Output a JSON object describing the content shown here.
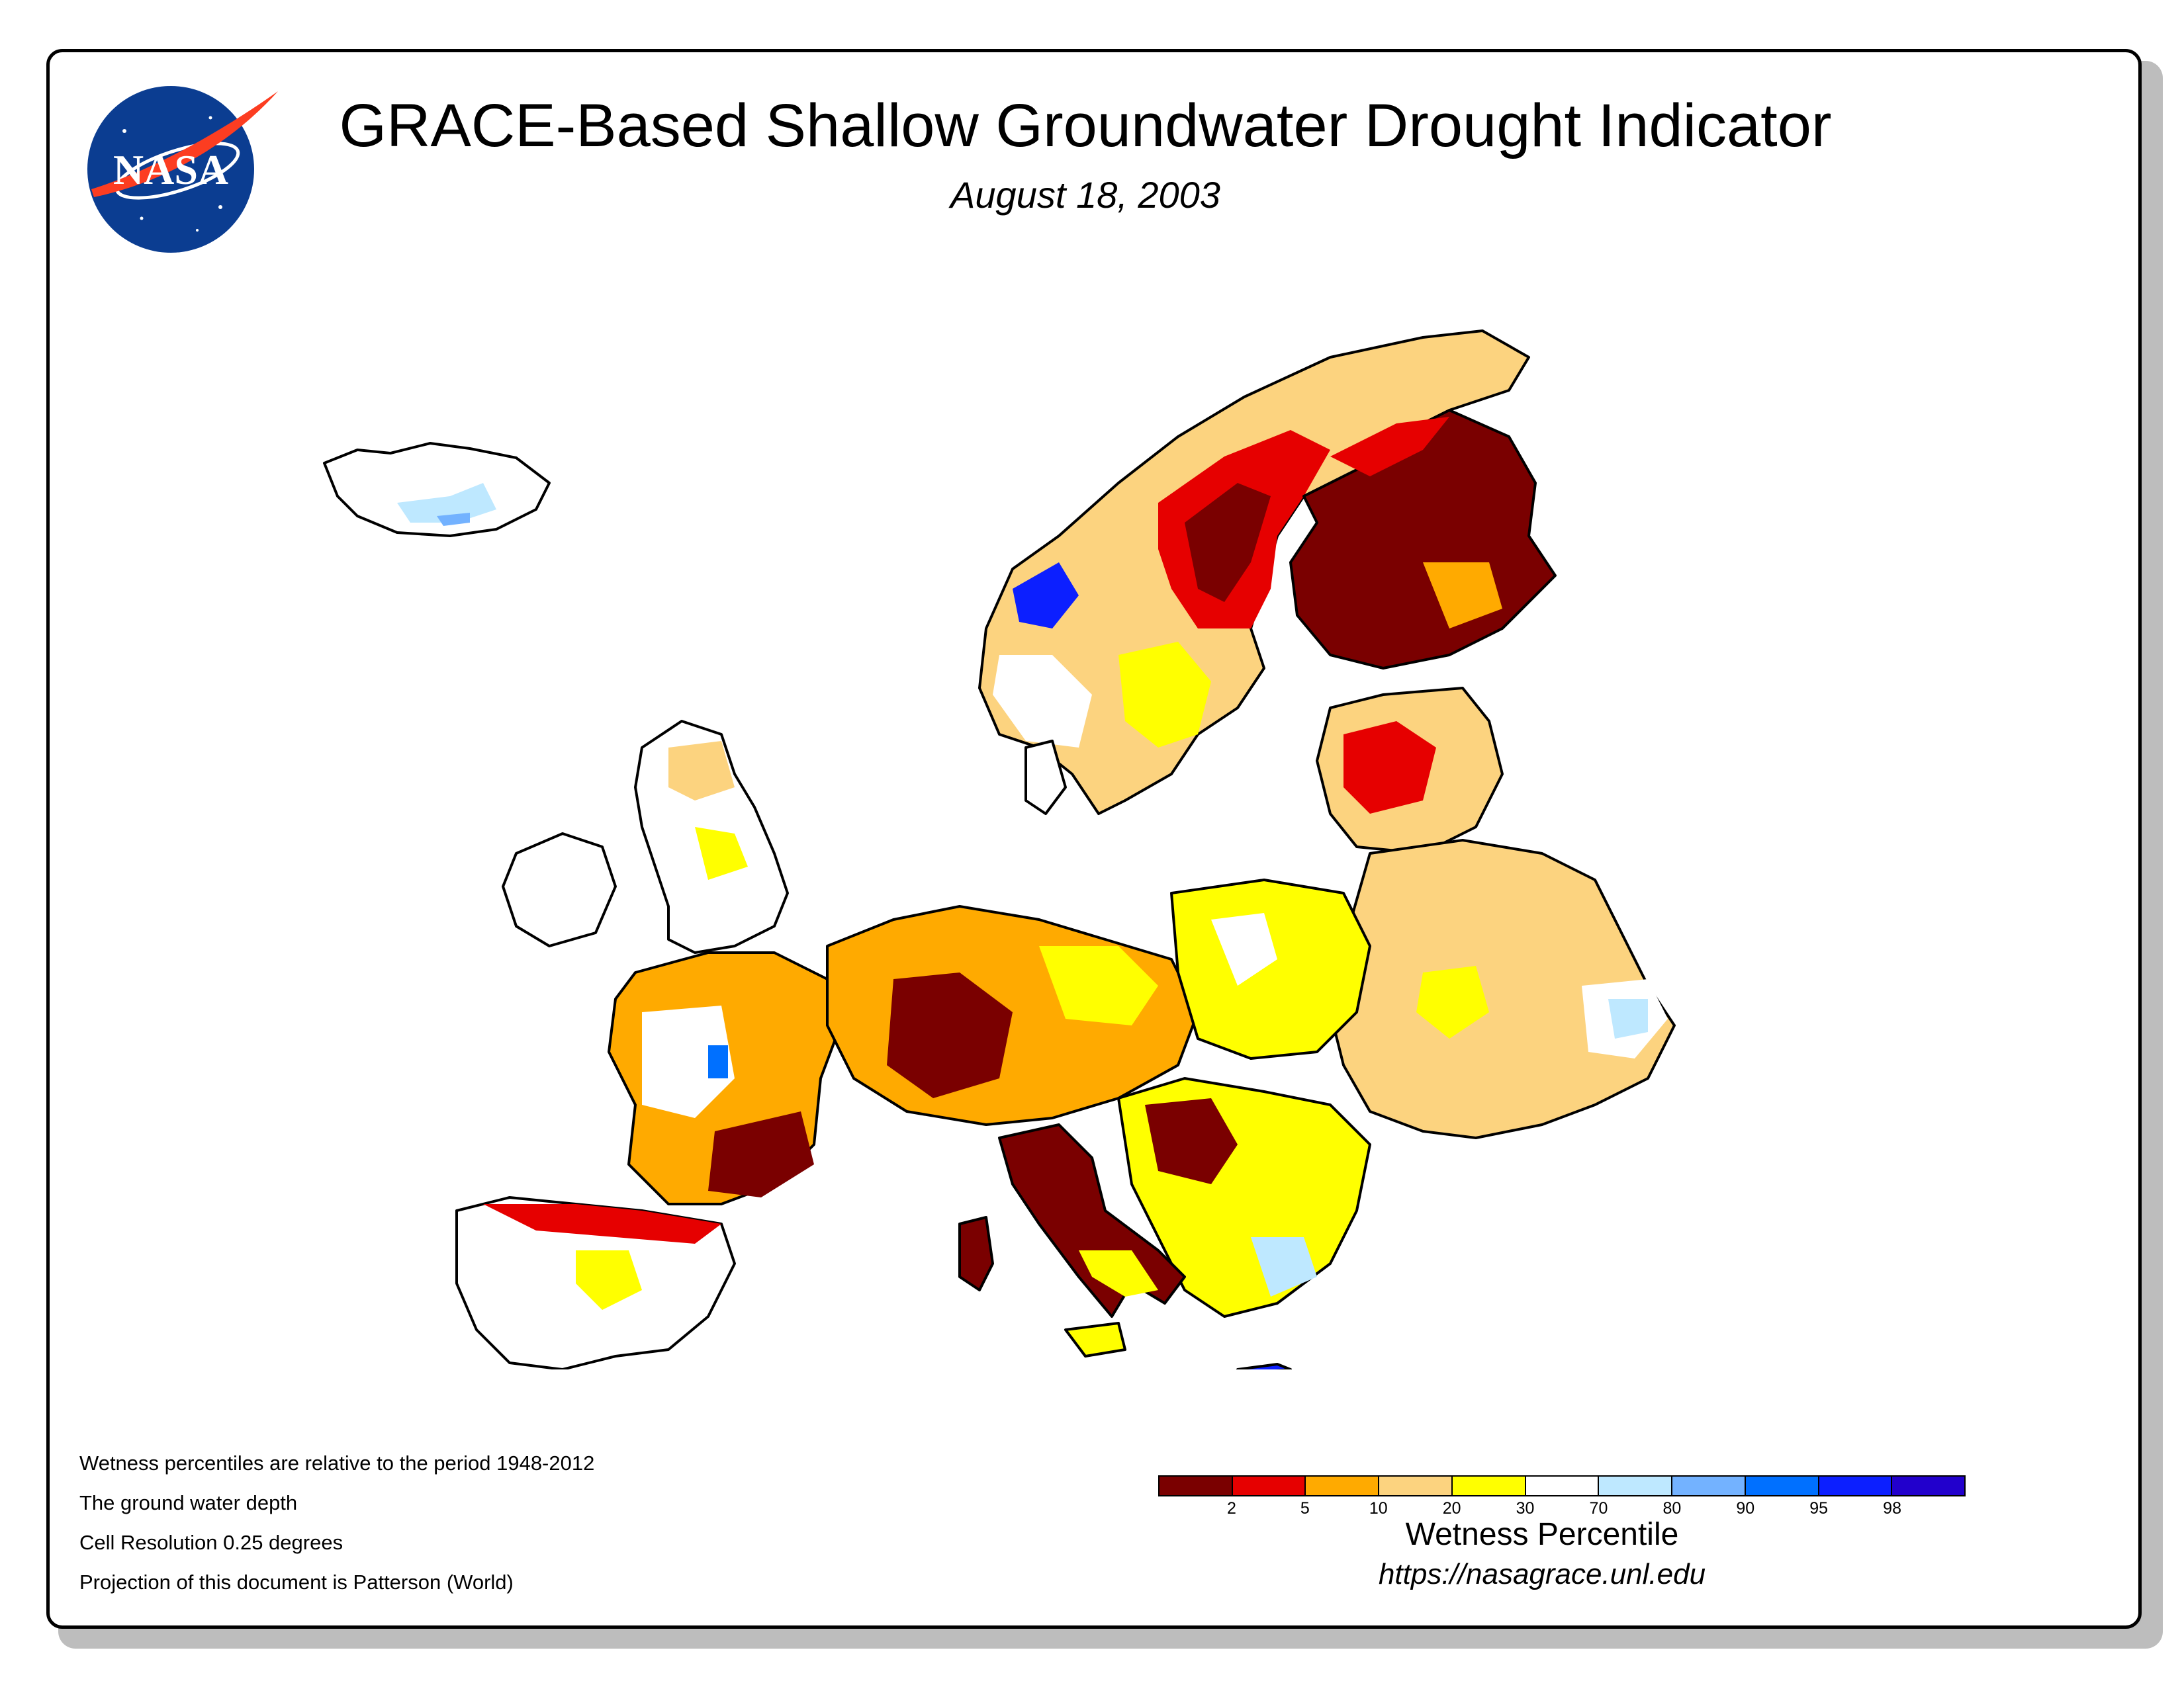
{
  "title": "GRACE-Based Shallow Groundwater Drought Indicator",
  "date": "August 18, 2003",
  "logo_text": "NASA",
  "notes": [
    "Wetness percentiles are relative to the period 1948-2012",
    "The ground water depth",
    "Cell Resolution 0.25 degrees",
    "Projection of this document is Patterson (World)"
  ],
  "legend": {
    "title": "Wetness Percentile",
    "url": "https://nasagrace.unl.edu",
    "ticks": [
      "2",
      "5",
      "10",
      "20",
      "30",
      "70",
      "80",
      "90",
      "95",
      "98"
    ],
    "colors": [
      "#7a0000",
      "#e60000",
      "#ffaa00",
      "#fcd37f",
      "#ffff00",
      "#ffffff",
      "#bee8ff",
      "#73b2ff",
      "#0070ff",
      "#0c1fff",
      "#2200cc"
    ]
  },
  "colors": {
    "extreme_dry": "#7a0000",
    "severe_dry": "#e60000",
    "moderate_dry": "#ffaa00",
    "mild_dry": "#fcd37f",
    "abnormal_dry": "#ffff00",
    "normal": "#ffffff",
    "wet": "#73b2ff",
    "border": "#000000"
  }
}
